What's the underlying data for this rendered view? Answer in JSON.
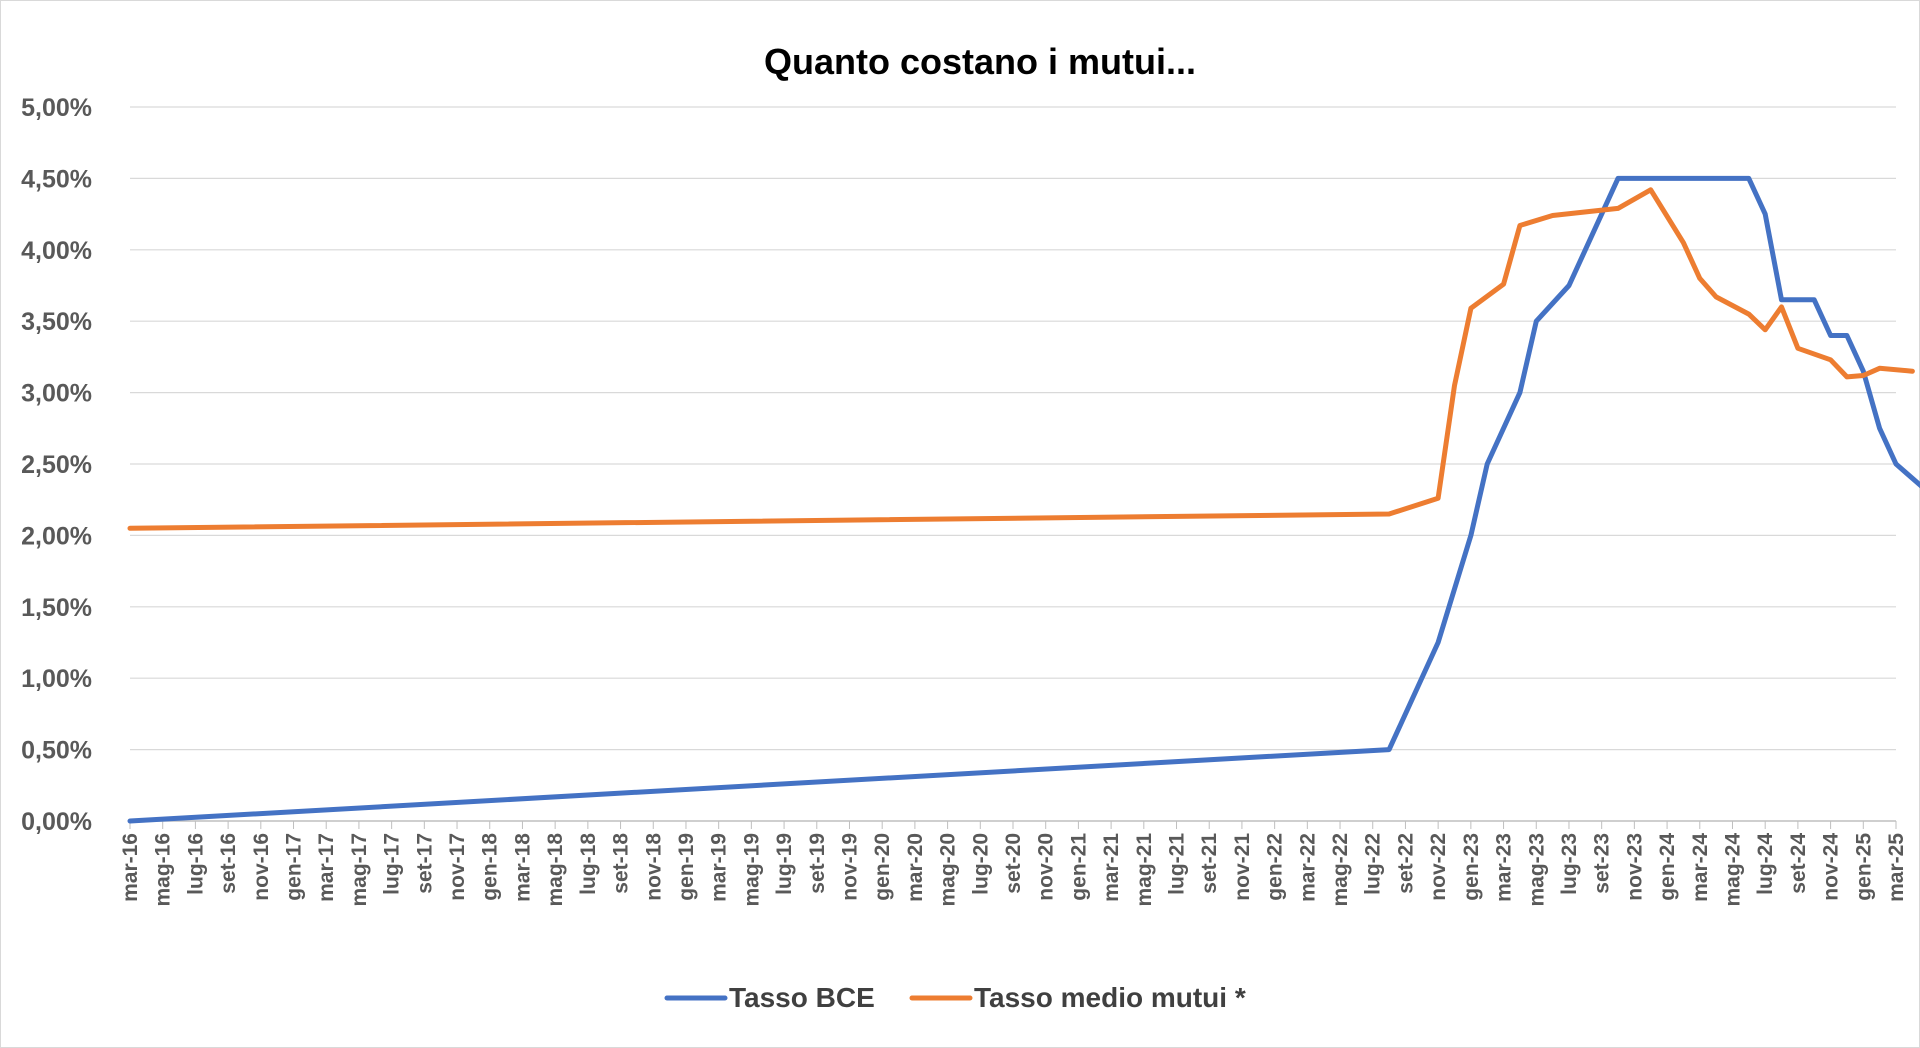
{
  "chart_data": {
    "type": "line",
    "title": "Quanto costano i mutui...",
    "xlabel": "",
    "ylabel": "",
    "ylim": [
      0,
      5
    ],
    "y_ticks": [
      "0,00%",
      "0,50%",
      "1,00%",
      "1,50%",
      "2,00%",
      "2,50%",
      "3,00%",
      "3,50%",
      "4,00%",
      "4,50%",
      "5,00%"
    ],
    "grid": true,
    "legend_position": "bottom",
    "categories": [
      "mar-16",
      "mag-16",
      "lug-16",
      "set-16",
      "nov-16",
      "gen-17",
      "mar-17",
      "mag-17",
      "lug-17",
      "set-17",
      "nov-17",
      "gen-18",
      "mar-18",
      "mag-18",
      "lug-18",
      "set-18",
      "nov-18",
      "gen-19",
      "mar-19",
      "mag-19",
      "lug-19",
      "set-19",
      "nov-19",
      "gen-20",
      "mar-20",
      "mag-20",
      "lug-20",
      "set-20",
      "nov-20",
      "gen-21",
      "mar-21",
      "mag-21",
      "lug-21",
      "set-21",
      "nov-21",
      "gen-22",
      "mar-22",
      "mag-22",
      "lug-22",
      "set-22",
      "nov-22",
      "gen-23",
      "mar-23",
      "mag-23",
      "lug-23",
      "set-23",
      "nov-23",
      "gen-24",
      "mar-24",
      "mag-24",
      "lug-24",
      "set-24",
      "nov-24",
      "gen-25",
      "mar-25"
    ],
    "series": [
      {
        "name": "Tasso BCE",
        "color": "#4472c4",
        "points": [
          [
            0,
            0
          ],
          [
            38.5,
            0.5
          ],
          [
            40,
            1.25
          ],
          [
            41,
            2
          ],
          [
            41.5,
            2.5
          ],
          [
            42.5,
            3
          ],
          [
            43,
            3.5
          ],
          [
            44,
            3.75
          ],
          [
            45.5,
            4.5
          ],
          [
            49.5,
            4.5
          ],
          [
            50,
            4.25
          ],
          [
            50.5,
            3.65
          ],
          [
            51.5,
            3.65
          ],
          [
            52,
            3.4
          ],
          [
            52.5,
            3.4
          ],
          [
            53,
            3.15
          ],
          [
            53.5,
            2.75
          ],
          [
            54,
            2.5
          ],
          [
            55,
            2.3
          ]
        ]
      },
      {
        "name": "Tasso medio mutui *",
        "color": "#ed7d31",
        "points": [
          [
            0,
            2.05
          ],
          [
            38.5,
            2.15
          ],
          [
            40,
            2.26
          ],
          [
            40.5,
            3.05
          ],
          [
            41,
            3.59
          ],
          [
            42,
            3.76
          ],
          [
            42.5,
            4.17
          ],
          [
            43.5,
            4.24
          ],
          [
            45.5,
            4.29
          ],
          [
            46.5,
            4.42
          ],
          [
            47.5,
            4.05
          ],
          [
            48,
            3.8
          ],
          [
            48.5,
            3.67
          ],
          [
            49.5,
            3.55
          ],
          [
            50,
            3.44
          ],
          [
            50.5,
            3.6
          ],
          [
            51,
            3.31
          ],
          [
            52,
            3.23
          ],
          [
            52.5,
            3.11
          ],
          [
            53,
            3.12
          ],
          [
            53.5,
            3.17
          ],
          [
            54.5,
            3.15
          ]
        ]
      }
    ]
  }
}
